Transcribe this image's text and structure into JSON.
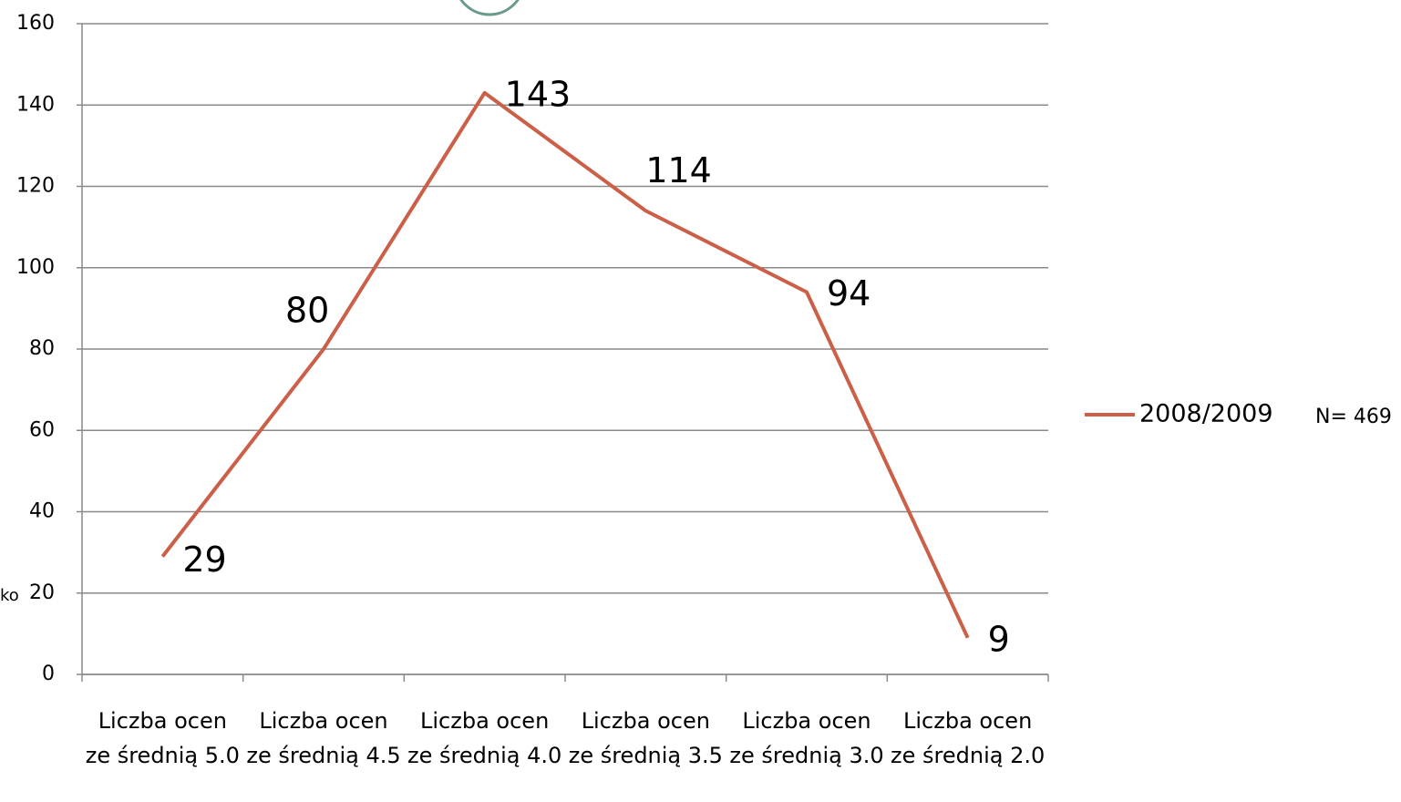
{
  "chart_data": {
    "type": "line",
    "categories": [
      "Liczba ocen ze średnią 5.0",
      "Liczba ocen ze średnią 4.5",
      "Liczba ocen ze średnią 4.0",
      "Liczba ocen ze średnią 3.5",
      "Liczba ocen ze średnią 3.0",
      "Liczba ocen ze średnią 2.0"
    ],
    "series": [
      {
        "name": "2008/2009",
        "color": "#cb5f48",
        "values": [
          29,
          80,
          143,
          114,
          94,
          9
        ]
      }
    ],
    "ylim": [
      0,
      160
    ],
    "yticks": [
      0,
      20,
      40,
      60,
      80,
      100,
      120,
      140,
      160
    ],
    "grid": true,
    "legend": "right",
    "annotation": "N= 469",
    "y_axis_label": "ko"
  }
}
